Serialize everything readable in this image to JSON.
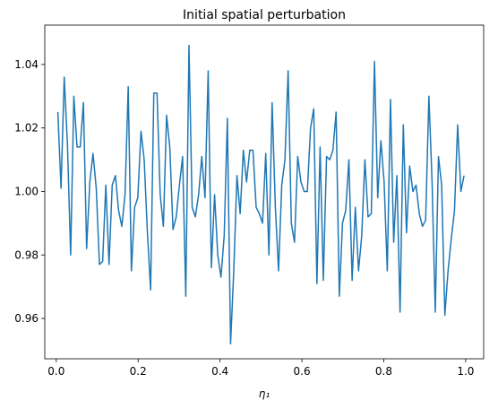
{
  "chart_data": {
    "type": "line",
    "title": "Initial spatial perturbation",
    "x_label": "η₁",
    "x": [
      0.0039,
      0.0117,
      0.0195,
      0.0273,
      0.0352,
      0.043,
      0.0508,
      0.0586,
      0.0664,
      0.0742,
      0.082,
      0.0898,
      0.0977,
      0.1055,
      0.1133,
      0.1211,
      0.1289,
      0.1367,
      0.1445,
      0.1523,
      0.1602,
      0.168,
      0.1758,
      0.1836,
      0.1914,
      0.1992,
      0.207,
      0.2148,
      0.2227,
      0.2305,
      0.2383,
      0.2461,
      0.2539,
      0.2617,
      0.2695,
      0.2773,
      0.2852,
      0.293,
      0.3008,
      0.3086,
      0.3164,
      0.3242,
      0.332,
      0.3398,
      0.3477,
      0.3555,
      0.3633,
      0.3711,
      0.3789,
      0.3867,
      0.3945,
      0.4023,
      0.4102,
      0.418,
      0.4258,
      0.4336,
      0.4414,
      0.4492,
      0.457,
      0.4648,
      0.4727,
      0.4805,
      0.4883,
      0.4961,
      0.5039,
      0.5117,
      0.5195,
      0.5273,
      0.5352,
      0.543,
      0.5508,
      0.5586,
      0.5664,
      0.5742,
      0.582,
      0.5898,
      0.5977,
      0.6055,
      0.6133,
      0.6211,
      0.6289,
      0.6367,
      0.6445,
      0.6523,
      0.6602,
      0.668,
      0.6758,
      0.6836,
      0.6914,
      0.6992,
      0.707,
      0.7148,
      0.7227,
      0.7305,
      0.7383,
      0.7461,
      0.7539,
      0.7617,
      0.7695,
      0.7773,
      0.7852,
      0.793,
      0.8008,
      0.8086,
      0.8164,
      0.8242,
      0.832,
      0.8398,
      0.8477,
      0.8555,
      0.8633,
      0.8711,
      0.8789,
      0.8867,
      0.8945,
      0.9023,
      0.9102,
      0.918,
      0.9258,
      0.9336,
      0.9414,
      0.9492,
      0.957,
      0.9648,
      0.9727,
      0.9805,
      0.9883,
      0.9961
    ],
    "values": [
      1.025,
      1.001,
      1.036,
      1.015,
      0.98,
      1.03,
      1.014,
      1.014,
      1.028,
      0.982,
      1.003,
      1.012,
      1.001,
      0.977,
      0.978,
      1.002,
      0.977,
      1.002,
      1.005,
      0.994,
      0.989,
      0.999,
      1.033,
      0.975,
      0.995,
      0.998,
      1.019,
      1.01,
      0.987,
      0.969,
      1.031,
      1.031,
      0.999,
      0.989,
      1.024,
      1.014,
      0.988,
      0.992,
      1.002,
      1.011,
      0.967,
      1.046,
      0.995,
      0.992,
      0.999,
      1.011,
      0.998,
      1.038,
      0.976,
      0.999,
      0.98,
      0.973,
      0.986,
      1.023,
      0.952,
      0.975,
      1.005,
      0.993,
      1.013,
      1.003,
      1.013,
      1.013,
      0.995,
      0.993,
      0.99,
      1.012,
      0.98,
      1.028,
      0.995,
      0.975,
      1.002,
      1.01,
      1.038,
      0.99,
      0.984,
      1.011,
      1.003,
      1.0,
      1.0,
      1.02,
      1.026,
      0.971,
      1.014,
      0.972,
      1.011,
      1.01,
      1.013,
      1.025,
      0.967,
      0.99,
      0.994,
      1.01,
      0.972,
      0.995,
      0.975,
      0.986,
      1.01,
      0.992,
      0.993,
      1.041,
      0.998,
      1.016,
      1.003,
      0.975,
      1.029,
      0.984,
      1.005,
      0.962,
      1.021,
      0.987,
      1.008,
      1.0,
      1.002,
      0.993,
      0.989,
      0.991,
      1.03,
      1.003,
      0.962,
      1.011,
      1.002,
      0.961,
      0.975,
      0.985,
      0.994,
      1.021,
      1.0,
      1.005
    ],
    "color": "#1f77b4",
    "xlim": [
      -0.028,
      1.044
    ],
    "ylim": [
      0.9473,
      1.0524
    ],
    "xticks": [
      {
        "value": 0,
        "label": "0.0"
      },
      0.2,
      0.4,
      0.6,
      0.8,
      {
        "value": 1,
        "label": "1.0"
      }
    ],
    "yticks": [
      0.96,
      0.98,
      {
        "value": 1,
        "label": "1.00"
      },
      1.02,
      1.04
    ]
  }
}
